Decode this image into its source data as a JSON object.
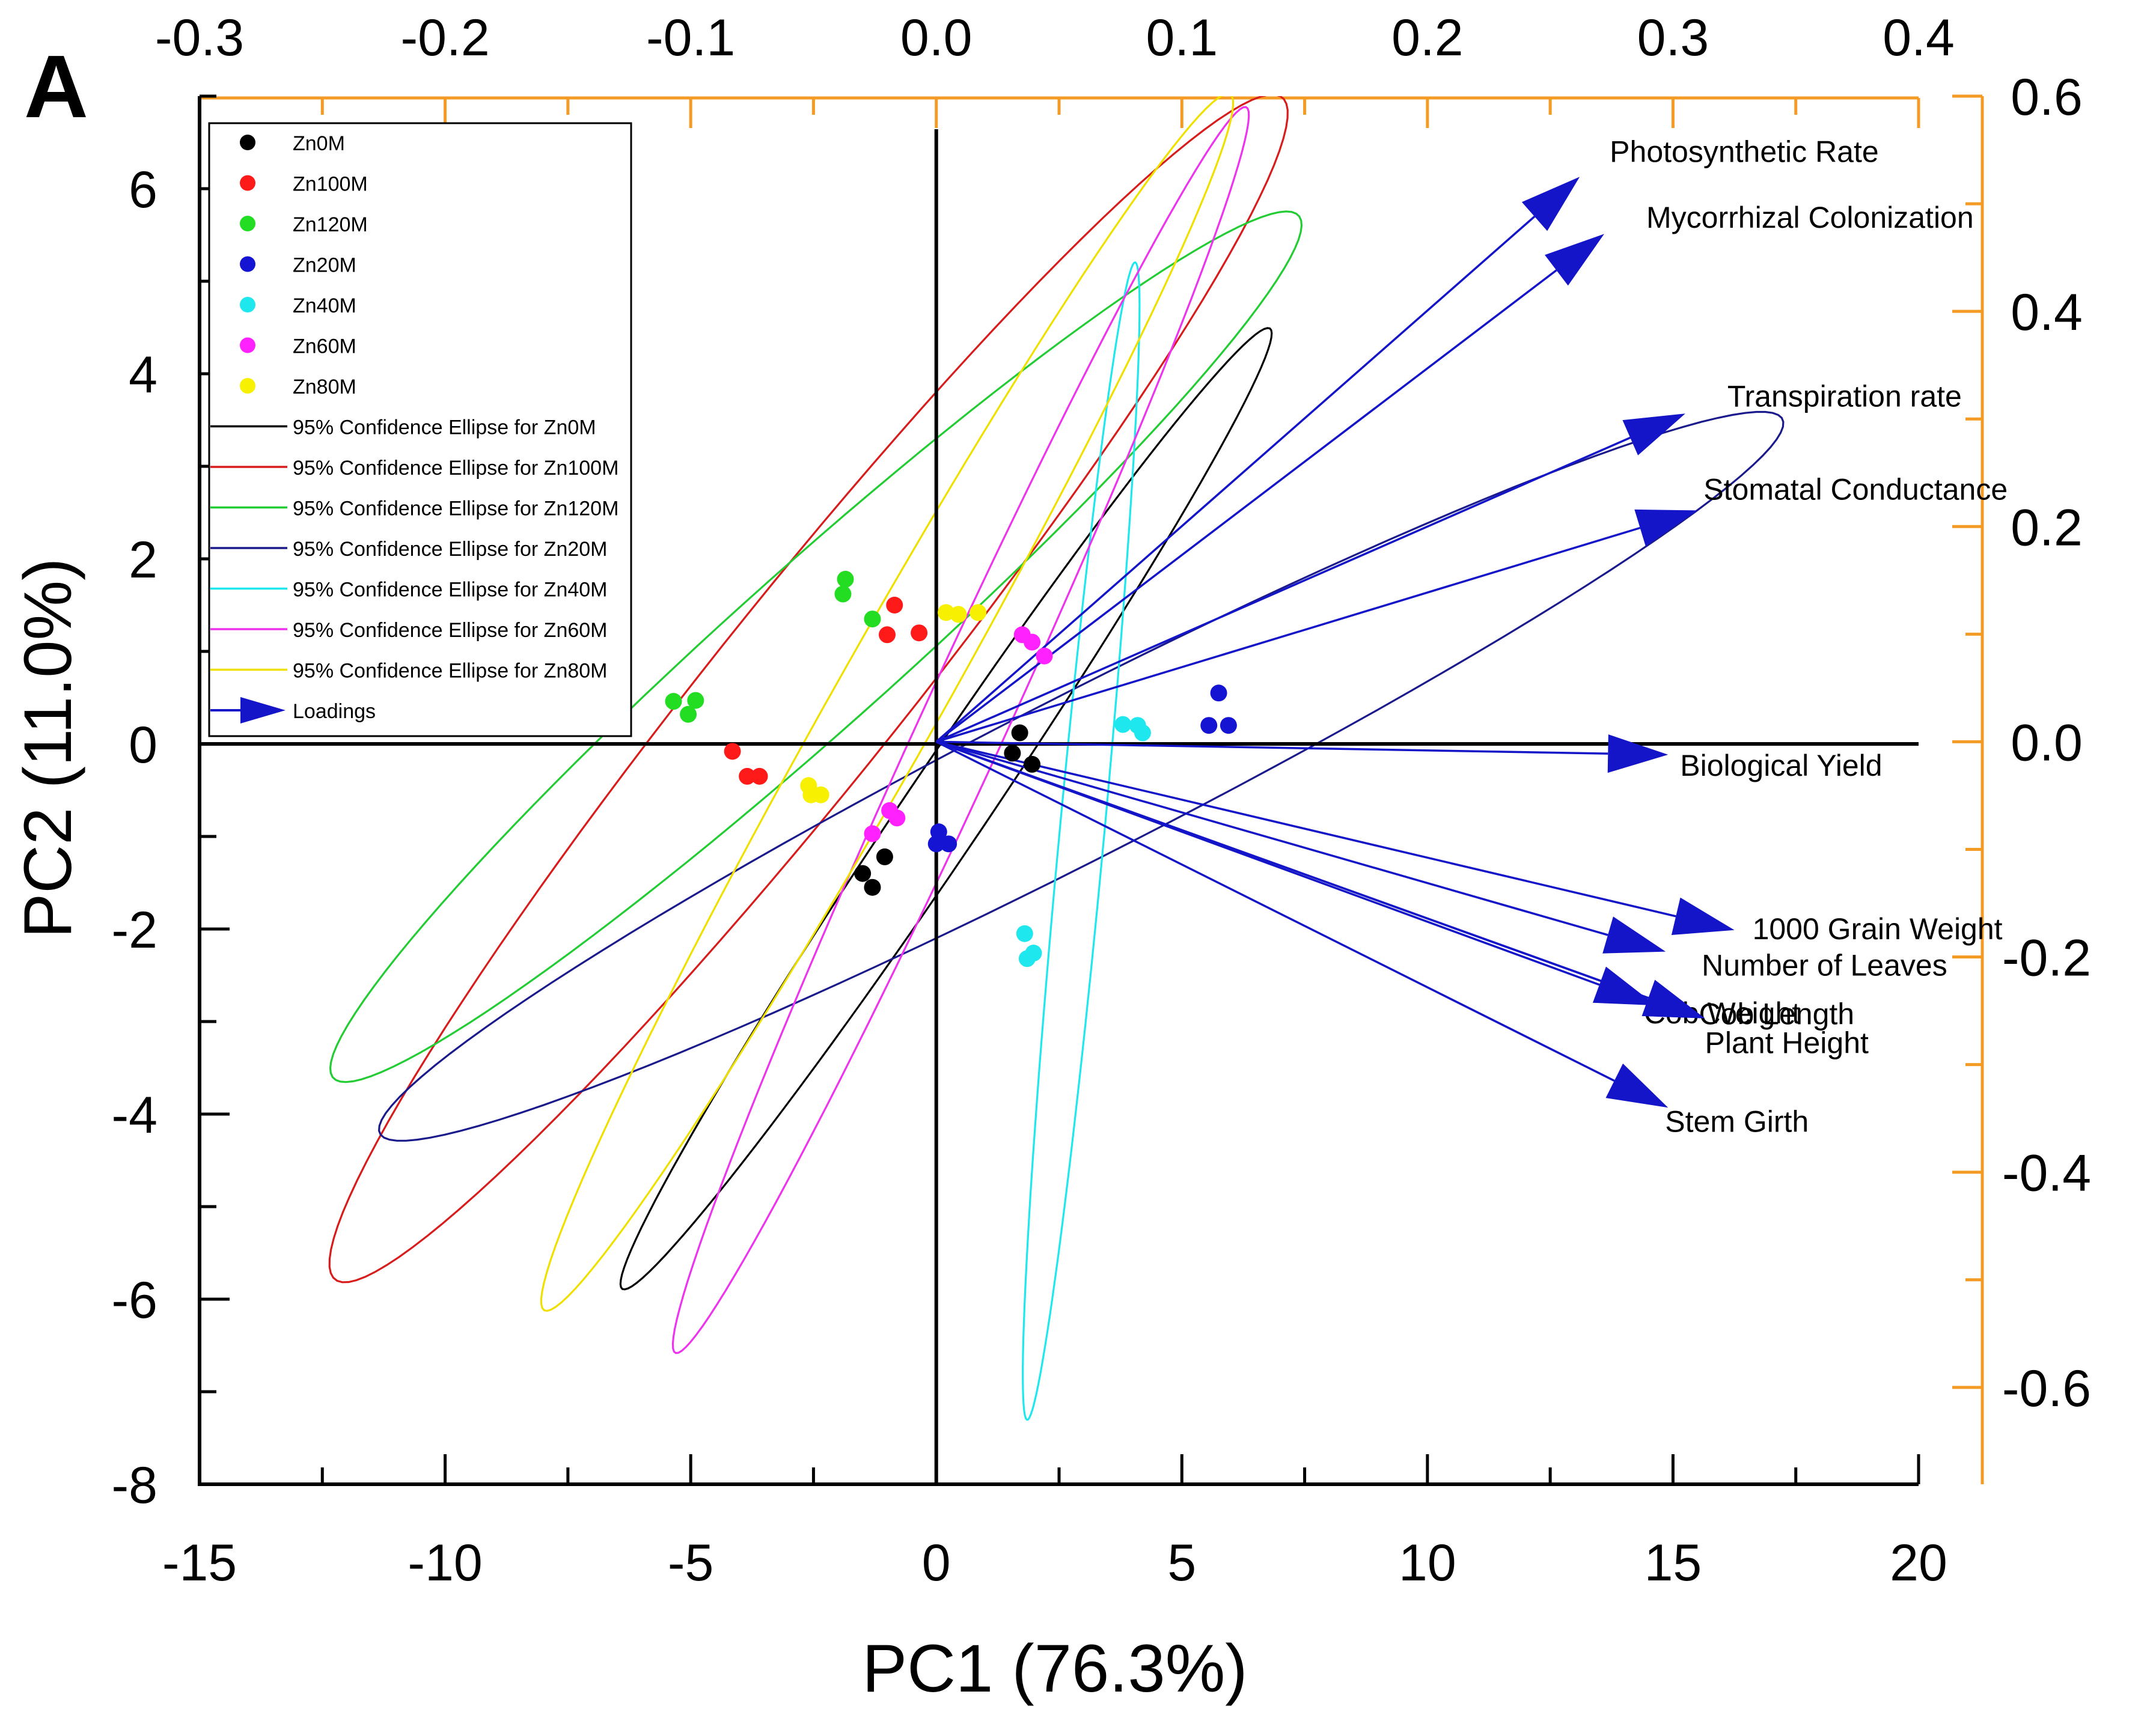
{
  "panel_label": "A",
  "chart_data": {
    "type": "scatter",
    "subtype": "PCA biplot",
    "xlabel": "PC1 (76.3%)",
    "ylabel": "PC2 (11.0%)",
    "xlim": [
      -15,
      20
    ],
    "ylim": [
      -8,
      7
    ],
    "x_ticks": [
      -15,
      -10,
      -5,
      0,
      5,
      10,
      15,
      20
    ],
    "x_tick_labels": [
      "-15",
      "-10",
      "-5",
      "0",
      "5",
      "10",
      "15",
      "20"
    ],
    "y_ticks": [
      -8,
      -6,
      -4,
      -2,
      0,
      2,
      4,
      6
    ],
    "y_tick_labels": [
      "-8",
      "-6",
      "-4",
      "-2",
      "0",
      "2",
      "4",
      "6"
    ],
    "top_axis": {
      "color": "#f39b24",
      "lim": [
        -0.3,
        0.4
      ],
      "ticks": [
        -0.3,
        -0.2,
        -0.1,
        0.0,
        0.1,
        0.2,
        0.3,
        0.4
      ],
      "tick_labels": [
        "-0.3",
        "-0.2",
        "-0.1",
        "0.0",
        "0.1",
        "0.2",
        "0.3",
        "0.4"
      ]
    },
    "right_axis": {
      "color": "#f39b24",
      "lim": [
        -0.69,
        0.6
      ],
      "ticks": [
        -0.6,
        -0.4,
        -0.2,
        0.0,
        0.2,
        0.4,
        0.6
      ],
      "tick_labels": [
        "-0.6",
        "-0.4",
        "-0.2",
        "0.0",
        "0.2",
        "0.4",
        "0.6"
      ]
    },
    "zero_lines": true,
    "legend_position": "top-left",
    "series": [
      {
        "name": "Zn0M",
        "color": "#000000",
        "points": [
          [
            -1.5,
            -1.4
          ],
          [
            -1.3,
            -1.55
          ],
          [
            -1.05,
            -1.22
          ],
          [
            1.55,
            -0.1
          ],
          [
            1.7,
            0.12
          ],
          [
            1.95,
            -0.22
          ]
        ]
      },
      {
        "name": "Zn100M",
        "color": "#ff1a1a",
        "points": [
          [
            -4.15,
            -0.08
          ],
          [
            -3.85,
            -0.35
          ],
          [
            -3.6,
            -0.35
          ],
          [
            -1.0,
            1.18
          ],
          [
            -0.85,
            1.5
          ],
          [
            -0.35,
            1.2
          ]
        ]
      },
      {
        "name": "Zn120M",
        "color": "#22dd22",
        "points": [
          [
            -5.35,
            0.46
          ],
          [
            -5.05,
            0.32
          ],
          [
            -4.9,
            0.47
          ],
          [
            -1.9,
            1.62
          ],
          [
            -1.85,
            1.78
          ],
          [
            -1.3,
            1.35
          ]
        ]
      },
      {
        "name": "Zn20M",
        "color": "#1414d2",
        "points": [
          [
            0.05,
            -0.95
          ],
          [
            0.0,
            -1.08
          ],
          [
            0.25,
            -1.08
          ],
          [
            5.55,
            0.2
          ],
          [
            5.75,
            0.55
          ],
          [
            5.95,
            0.2
          ]
        ]
      },
      {
        "name": "Zn40M",
        "color": "#1ee8ee",
        "points": [
          [
            1.8,
            -2.05
          ],
          [
            1.85,
            -2.32
          ],
          [
            1.98,
            -2.26
          ],
          [
            3.8,
            0.21
          ],
          [
            4.1,
            0.2
          ],
          [
            4.2,
            0.12
          ]
        ]
      },
      {
        "name": "Zn60M",
        "color": "#ff22ff",
        "points": [
          [
            -1.3,
            -0.97
          ],
          [
            -0.95,
            -0.72
          ],
          [
            -0.8,
            -0.8
          ],
          [
            1.75,
            1.18
          ],
          [
            1.95,
            1.1
          ],
          [
            2.2,
            0.95
          ]
        ]
      },
      {
        "name": "Zn80M",
        "color": "#f7f000",
        "points": [
          [
            -2.6,
            -0.45
          ],
          [
            -2.55,
            -0.55
          ],
          [
            -2.35,
            -0.55
          ],
          [
            0.2,
            1.42
          ],
          [
            0.45,
            1.4
          ],
          [
            0.85,
            1.42
          ]
        ]
      }
    ],
    "ellipses": [
      {
        "name": "95% Confidence Ellipse for Zn0M",
        "color": "#000000",
        "center": [
          0.2,
          -0.7
        ],
        "a": 8.4,
        "b": 0.62,
        "angle_deg": 38.0
      },
      {
        "name": "95% Confidence Ellipse for Zn100M",
        "color": "#d81c1c",
        "center": [
          -2.6,
          0.6
        ],
        "a": 11.6,
        "b": 1.35,
        "angle_deg": 33.0
      },
      {
        "name": "95% Confidence Ellipse for Zn120M",
        "color": "#22cc33",
        "center": [
          -2.45,
          1.05
        ],
        "a": 10.9,
        "b": 1.05,
        "angle_deg": 25.0
      },
      {
        "name": "95% Confidence Ellipse for Zn20M",
        "color": "#1a1a8c",
        "center": [
          2.95,
          -0.35
        ],
        "a": 14.8,
        "b": 0.95,
        "angle_deg": 15.0
      },
      {
        "name": "95% Confidence Ellipse for Zn40M",
        "color": "#1ee8ee",
        "center": [
          2.95,
          -1.05
        ],
        "a": 6.35,
        "b": 0.45,
        "angle_deg": 80.0
      },
      {
        "name": "95% Confidence Ellipse for Zn60M",
        "color": "#ee33ee",
        "center": [
          0.5,
          0.15
        ],
        "a": 8.9,
        "b": 0.72,
        "angle_deg": 49.0
      },
      {
        "name": "95% Confidence Ellipse for Zn80M",
        "color": "#f0e000",
        "center": [
          -1.0,
          0.45
        ],
        "a": 9.6,
        "b": 0.85,
        "angle_deg": 43.0
      }
    ],
    "loadings": {
      "name": "Loadings",
      "color": "#1414c8",
      "vectors": [
        {
          "label": "Photosynthetic Rate",
          "x": 0.262,
          "y": 0.525
        },
        {
          "label": "Mycorrhizal Colonization",
          "x": 0.272,
          "y": 0.472
        },
        {
          "label": "Transpiration rate",
          "x": 0.305,
          "y": 0.305
        },
        {
          "label": "Stomatal Conductance",
          "x": 0.31,
          "y": 0.215
        },
        {
          "label": "Biological Yield",
          "x": 0.298,
          "y": -0.012
        },
        {
          "label": "1000 Grain Weight",
          "x": 0.325,
          "y": -0.175
        },
        {
          "label": "Number of Leaves",
          "x": 0.297,
          "y": -0.195
        },
        {
          "label": "Cob Weight",
          "x": 0.293,
          "y": -0.245
        },
        {
          "label": "Cob Length",
          "x": 0.313,
          "y": -0.257
        },
        {
          "label": "Plant Height",
          "x": 0.313,
          "y": -0.257
        },
        {
          "label": "Stem Girth",
          "x": 0.298,
          "y": -0.34
        }
      ]
    }
  }
}
